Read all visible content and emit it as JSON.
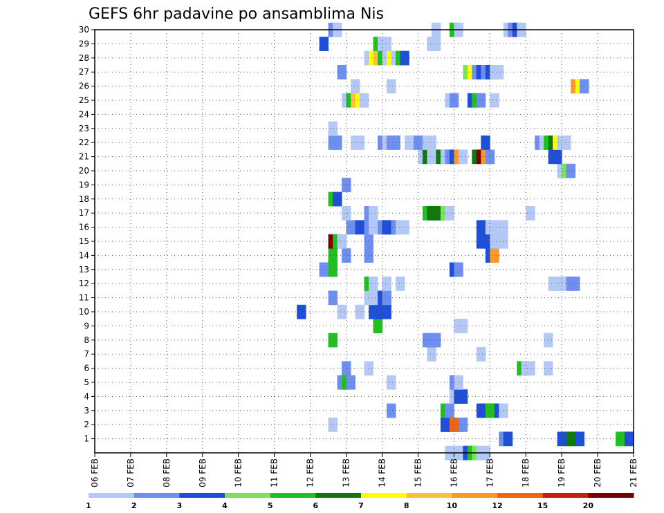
{
  "chart_data": {
    "type": "heatmap",
    "title": "GEFS 6hr padavine po ansamblima Nis",
    "x_tick_labels": [
      "06 FEB",
      "07 FEB",
      "08 FEB",
      "09 FEB",
      "10 FEB",
      "11 FEB",
      "12 FEB",
      "13 FEB",
      "14 FEB",
      "15 FEB",
      "16 FEB",
      "17 FEB",
      "18 FEB",
      "19 FEB",
      "20 FEB",
      "21 FEB"
    ],
    "x_range_days": [
      0,
      15
    ],
    "y_tick_labels": [
      "1",
      "2",
      "3",
      "4",
      "5",
      "6",
      "7",
      "8",
      "9",
      "10",
      "11",
      "12",
      "13",
      "14",
      "15",
      "16",
      "17",
      "18",
      "19",
      "20",
      "21",
      "22",
      "23",
      "24",
      "25",
      "26",
      "27",
      "28",
      "29",
      "30"
    ],
    "y_range": [
      0,
      30
    ],
    "xlabel": "",
    "ylabel": "",
    "grid": true,
    "colorbar": {
      "labels": [
        "1",
        "2",
        "3",
        "4",
        "5",
        "6",
        "7",
        "8",
        "10",
        "12",
        "15",
        "20"
      ],
      "colors": [
        "#b4c8f5",
        "#6e8ff0",
        "#1f4fd6",
        "#78e45a",
        "#20c020",
        "#0e7a0e",
        "#ffff00",
        "#ffbf40",
        "#ff9628",
        "#f06414",
        "#c81e0a",
        "#780000"
      ]
    },
    "level_thresholds": [
      1,
      2,
      3,
      4,
      5,
      6,
      7,
      8,
      10,
      12,
      15,
      20
    ],
    "cells": [
      [
        13.0,
        1,
        3
      ],
      [
        13.125,
        1,
        3
      ],
      [
        13.25,
        1,
        6
      ],
      [
        13.375,
        1,
        6
      ],
      [
        13.5,
        1,
        3
      ],
      [
        11.375,
        1,
        2
      ],
      [
        11.5,
        1,
        3
      ],
      [
        14.625,
        1,
        5
      ],
      [
        14.75,
        1,
        5
      ],
      [
        14.875,
        1,
        3
      ],
      [
        6.625,
        2,
        1
      ],
      [
        9.75,
        2,
        3
      ],
      [
        9.875,
        2,
        3
      ],
      [
        10.0,
        2,
        10
      ],
      [
        10.125,
        2,
        10
      ],
      [
        10.25,
        2,
        2
      ],
      [
        8.25,
        3,
        2
      ],
      [
        9.75,
        3,
        5
      ],
      [
        9.875,
        3,
        2
      ],
      [
        10.75,
        3,
        3
      ],
      [
        10.875,
        3,
        3
      ],
      [
        11.0,
        3,
        5
      ],
      [
        11.125,
        3,
        5
      ],
      [
        11.25,
        3,
        3
      ],
      [
        11.375,
        3,
        1
      ],
      [
        10.0,
        4,
        1
      ],
      [
        10.125,
        4,
        3
      ],
      [
        10.25,
        4,
        3
      ],
      [
        6.875,
        5,
        2
      ],
      [
        7.0,
        5,
        5
      ],
      [
        7.125,
        5,
        2
      ],
      [
        8.25,
        5,
        1
      ],
      [
        10.0,
        5,
        2
      ],
      [
        10.125,
        5,
        1
      ],
      [
        7.0,
        6,
        2
      ],
      [
        7.625,
        6,
        1
      ],
      [
        11.875,
        6,
        5
      ],
      [
        12.0,
        6,
        1
      ],
      [
        12.125,
        6,
        1
      ],
      [
        12.625,
        6,
        1
      ],
      [
        9.375,
        7,
        1
      ],
      [
        10.75,
        7,
        1
      ],
      [
        6.625,
        8,
        5
      ],
      [
        9.25,
        8,
        2
      ],
      [
        9.375,
        8,
        2
      ],
      [
        9.5,
        8,
        2
      ],
      [
        12.625,
        8,
        1
      ],
      [
        7.875,
        9,
        5
      ],
      [
        10.125,
        9,
        1
      ],
      [
        10.25,
        9,
        1
      ],
      [
        5.75,
        10,
        3
      ],
      [
        6.875,
        10,
        1
      ],
      [
        7.375,
        10,
        1
      ],
      [
        7.75,
        10,
        3
      ],
      [
        7.875,
        10,
        3
      ],
      [
        8.0,
        10,
        3
      ],
      [
        8.125,
        10,
        3
      ],
      [
        6.625,
        11,
        2
      ],
      [
        7.625,
        11,
        1
      ],
      [
        7.75,
        11,
        1
      ],
      [
        8.0,
        11,
        3
      ],
      [
        8.125,
        11,
        2
      ],
      [
        7.625,
        12,
        5
      ],
      [
        7.75,
        12,
        1
      ],
      [
        8.125,
        12,
        1
      ],
      [
        8.5,
        12,
        1
      ],
      [
        12.75,
        12,
        1
      ],
      [
        12.875,
        12,
        1
      ],
      [
        13.0,
        12,
        1
      ],
      [
        13.25,
        12,
        2
      ],
      [
        13.375,
        12,
        2
      ],
      [
        6.375,
        13,
        2
      ],
      [
        6.5,
        13,
        2
      ],
      [
        6.625,
        13,
        5
      ],
      [
        10.0,
        13,
        3
      ],
      [
        10.125,
        13,
        2
      ],
      [
        6.625,
        14,
        5
      ],
      [
        7.0,
        14,
        2
      ],
      [
        7.625,
        14,
        2
      ],
      [
        11.0,
        14,
        3
      ],
      [
        11.125,
        14,
        9
      ],
      [
        6.625,
        15,
        12
      ],
      [
        6.75,
        15,
        5
      ],
      [
        6.875,
        15,
        1
      ],
      [
        7.625,
        15,
        2
      ],
      [
        10.75,
        15,
        3
      ],
      [
        10.875,
        15,
        3
      ],
      [
        11.0,
        15,
        3
      ],
      [
        11.125,
        15,
        1
      ],
      [
        11.25,
        15,
        1
      ],
      [
        11.375,
        15,
        1
      ],
      [
        7.125,
        16,
        2
      ],
      [
        7.375,
        16,
        3
      ],
      [
        7.625,
        16,
        2
      ],
      [
        7.75,
        16,
        1
      ],
      [
        8.0,
        16,
        2
      ],
      [
        8.125,
        16,
        3
      ],
      [
        8.25,
        16,
        3
      ],
      [
        8.375,
        16,
        2
      ],
      [
        8.5,
        16,
        1
      ],
      [
        8.625,
        16,
        1
      ],
      [
        10.75,
        16,
        3
      ],
      [
        10.875,
        16,
        3
      ],
      [
        11.0,
        16,
        1
      ],
      [
        11.125,
        16,
        1
      ],
      [
        11.25,
        16,
        1
      ],
      [
        11.375,
        16,
        1
      ],
      [
        7.0,
        17,
        1
      ],
      [
        7.625,
        17,
        2
      ],
      [
        7.75,
        17,
        1
      ],
      [
        9.25,
        17,
        5
      ],
      [
        9.375,
        17,
        6
      ],
      [
        9.5,
        17,
        6
      ],
      [
        9.625,
        17,
        6
      ],
      [
        9.75,
        17,
        4
      ],
      [
        9.875,
        17,
        1
      ],
      [
        12.125,
        17,
        1
      ],
      [
        6.625,
        18,
        5
      ],
      [
        6.75,
        18,
        3
      ],
      [
        7.0,
        19,
        2
      ],
      [
        13.0,
        20,
        1
      ],
      [
        13.125,
        20,
        4
      ],
      [
        13.25,
        20,
        2
      ],
      [
        9.125,
        21,
        1
      ],
      [
        9.25,
        21,
        6
      ],
      [
        9.375,
        21,
        1
      ],
      [
        9.625,
        21,
        6
      ],
      [
        9.75,
        21,
        1
      ],
      [
        9.875,
        21,
        2
      ],
      [
        10.0,
        21,
        3
      ],
      [
        10.125,
        21,
        9
      ],
      [
        10.25,
        21,
        1
      ],
      [
        10.625,
        21,
        6
      ],
      [
        10.75,
        21,
        12
      ],
      [
        10.875,
        21,
        9
      ],
      [
        11.0,
        21,
        2
      ],
      [
        12.75,
        21,
        3
      ],
      [
        12.875,
        21,
        3
      ],
      [
        6.625,
        22,
        2
      ],
      [
        6.75,
        22,
        2
      ],
      [
        7.25,
        22,
        1
      ],
      [
        7.375,
        22,
        1
      ],
      [
        8.0,
        22,
        2
      ],
      [
        8.125,
        22,
        1
      ],
      [
        8.25,
        22,
        2
      ],
      [
        8.375,
        22,
        2
      ],
      [
        8.75,
        22,
        1
      ],
      [
        8.875,
        22,
        1
      ],
      [
        9.0,
        22,
        2
      ],
      [
        9.125,
        22,
        2
      ],
      [
        9.25,
        22,
        1
      ],
      [
        9.375,
        22,
        1
      ],
      [
        10.875,
        22,
        3
      ],
      [
        12.375,
        22,
        2
      ],
      [
        12.5,
        22,
        1
      ],
      [
        12.625,
        22,
        5
      ],
      [
        12.75,
        22,
        6
      ],
      [
        12.875,
        22,
        7
      ],
      [
        13.0,
        22,
        1
      ],
      [
        13.125,
        22,
        1
      ],
      [
        6.625,
        23,
        1
      ],
      [
        7.0,
        25,
        1
      ],
      [
        7.125,
        25,
        5
      ],
      [
        7.25,
        25,
        8
      ],
      [
        7.375,
        25,
        7
      ],
      [
        7.5,
        25,
        1
      ],
      [
        9.875,
        25,
        1
      ],
      [
        10.0,
        25,
        2
      ],
      [
        10.5,
        25,
        3
      ],
      [
        10.625,
        25,
        5
      ],
      [
        10.75,
        25,
        2
      ],
      [
        11.125,
        25,
        1
      ],
      [
        7.25,
        26,
        1
      ],
      [
        8.25,
        26,
        1
      ],
      [
        13.375,
        26,
        9
      ],
      [
        13.5,
        26,
        7
      ],
      [
        13.625,
        26,
        2
      ],
      [
        6.875,
        27,
        2
      ],
      [
        10.375,
        27,
        4
      ],
      [
        10.5,
        27,
        7
      ],
      [
        10.625,
        27,
        2
      ],
      [
        10.75,
        27,
        3
      ],
      [
        10.875,
        27,
        2
      ],
      [
        11.0,
        27,
        3
      ],
      [
        11.125,
        27,
        1
      ],
      [
        11.25,
        27,
        1
      ],
      [
        7.625,
        28,
        1
      ],
      [
        7.75,
        28,
        7
      ],
      [
        7.875,
        28,
        8
      ],
      [
        8.0,
        28,
        5
      ],
      [
        8.125,
        28,
        1
      ],
      [
        8.25,
        28,
        7
      ],
      [
        8.375,
        28,
        1
      ],
      [
        8.5,
        28,
        5
      ],
      [
        8.625,
        28,
        3
      ],
      [
        6.375,
        29,
        3
      ],
      [
        7.875,
        29,
        5
      ],
      [
        8.0,
        29,
        1
      ],
      [
        8.125,
        29,
        1
      ],
      [
        9.375,
        29,
        1
      ],
      [
        9.5,
        29,
        1
      ],
      [
        6.625,
        30,
        2
      ],
      [
        6.75,
        30,
        1
      ],
      [
        9.5,
        30,
        1
      ],
      [
        10.0,
        30,
        5
      ],
      [
        10.125,
        30,
        1
      ],
      [
        11.5,
        30,
        1
      ],
      [
        11.625,
        30,
        2
      ],
      [
        11.75,
        30,
        3
      ],
      [
        11.875,
        30,
        1
      ],
      [
        9.875,
        0,
        1
      ],
      [
        10.0,
        0,
        1
      ],
      [
        10.125,
        0,
        1
      ],
      [
        10.25,
        0,
        1
      ],
      [
        10.375,
        0,
        3
      ],
      [
        10.5,
        0,
        5
      ],
      [
        10.625,
        0,
        4
      ],
      [
        10.75,
        0,
        1
      ],
      [
        10.875,
        0,
        1
      ]
    ]
  }
}
